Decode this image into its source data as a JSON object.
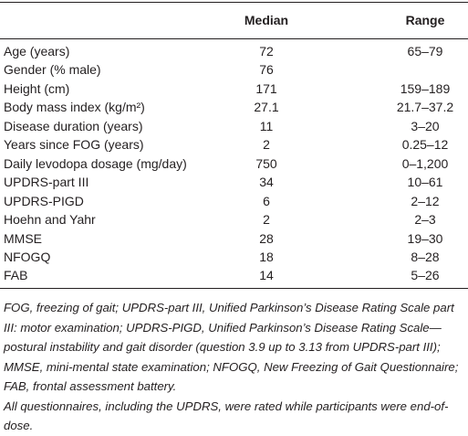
{
  "table": {
    "header": [
      "",
      "Median",
      "Range"
    ],
    "rows": [
      [
        "Age (years)",
        "72",
        "65–79"
      ],
      [
        "Gender (% male)",
        "76",
        ""
      ],
      [
        "Height (cm)",
        "171",
        "159–189"
      ],
      [
        "Body mass index (kg/m²)",
        "27.1",
        "21.7–37.2"
      ],
      [
        "Disease duration (years)",
        "11",
        "3–20"
      ],
      [
        "Years since FOG (years)",
        "2",
        "0.25–12"
      ],
      [
        "Daily levodopa dosage (mg/day)",
        "750",
        "0–1,200"
      ],
      [
        "UPDRS-part III",
        "34",
        "10–61"
      ],
      [
        "UPDRS-PIGD",
        "6",
        "2–12"
      ],
      [
        "Hoehn and Yahr",
        "2",
        "2–3"
      ],
      [
        "MMSE",
        "28",
        "19–30"
      ],
      [
        "NFOGQ",
        "18",
        "8–28"
      ],
      [
        "FAB",
        "14",
        "5–26"
      ]
    ]
  },
  "footnotes": [
    "FOG, freezing of gait; UPDRS-part III, Unified Parkinson’s Disease Rating Scale part III: motor examination; UPDRS-PIGD, Unified Parkinson’s Disease Rating Scale—postural instability and gait disorder (question 3.9 up to 3.13 from UPDRS-part III); MMSE, mini-mental state examination; NFOGQ, New Freezing of Gait Questionnaire; FAB, frontal assessment battery.",
    "All questionnaires, including the UPDRS, were rated while participants were end-of-dose."
  ]
}
